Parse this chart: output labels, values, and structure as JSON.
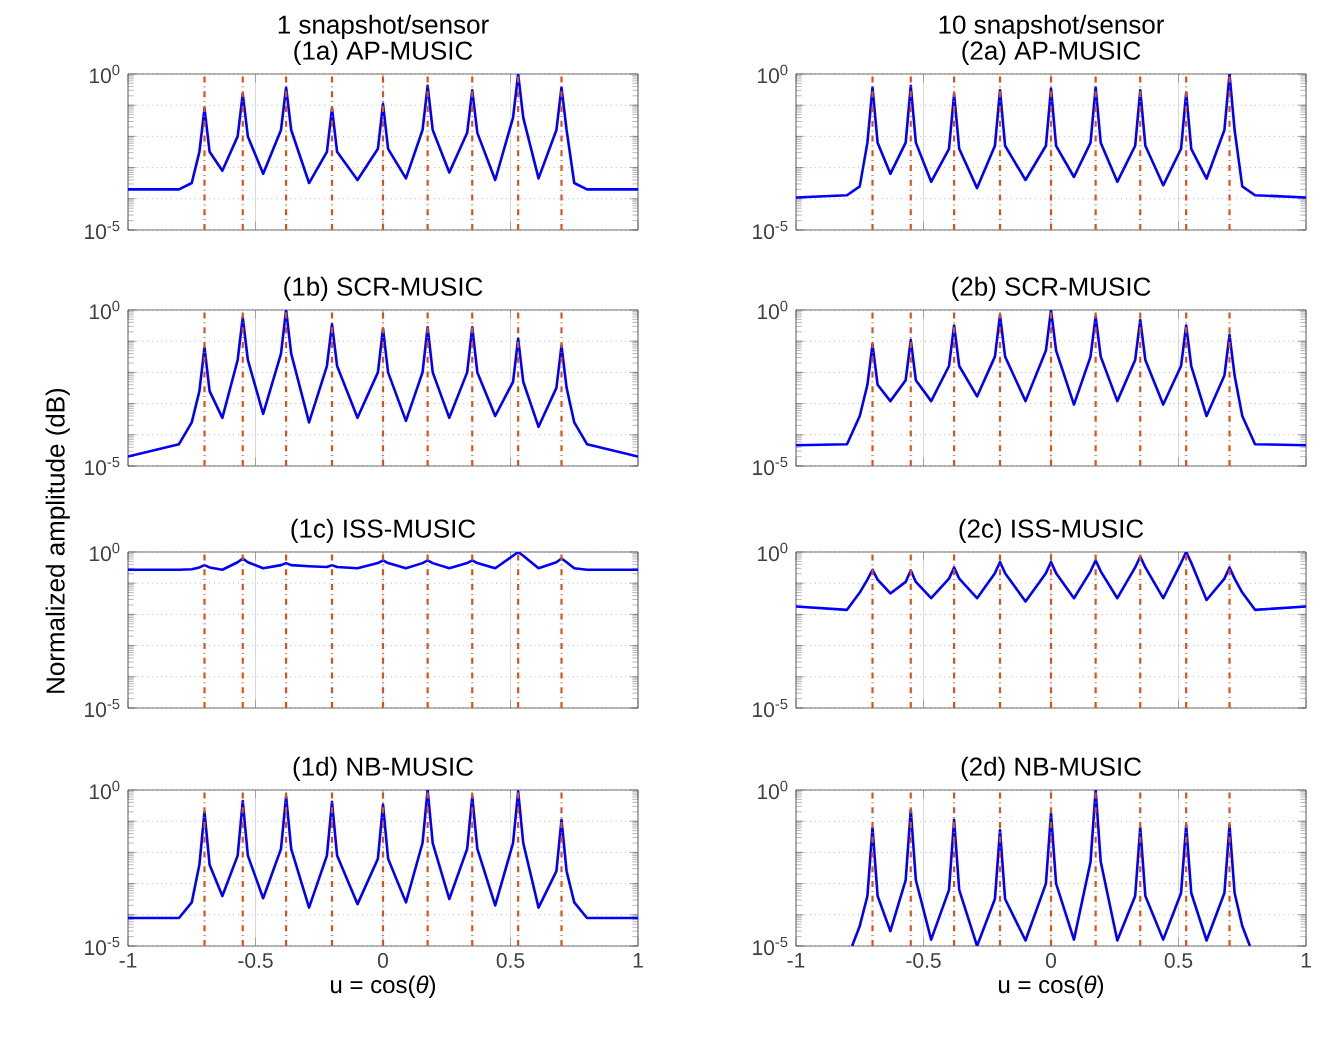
{
  "chart_data": [
    {
      "type": "line",
      "title": "1 snapshot/sensor",
      "subtitle": "(1a) AP-MUSIC",
      "log": "y",
      "grid": true,
      "tick_labels": "y",
      "color": "#0000ff",
      "xlim": [
        -1,
        1
      ],
      "ylim": [
        1e-05,
        1
      ],
      "xticks": [
        -1,
        -0.5,
        0,
        0.5,
        1
      ],
      "yticks": [
        {
          "value": 1e-05,
          "label": "10$^{-5}$"
        },
        {
          "value": 0.0001,
          "label": null
        },
        {
          "value": 0.001,
          "label": null
        },
        {
          "value": 0.01,
          "label": null
        },
        {
          "value": 0.1,
          "label": null
        },
        {
          "value": 1,
          "label": "10$^{0}$"
        }
      ],
      "ref_lines": [
        {
          "axis": "x",
          "value": -0.7,
          "color": "#d95319",
          "line_style": "dashdot"
        },
        {
          "axis": "x",
          "value": -0.55,
          "color": "#d95319",
          "line_style": "dashdot"
        },
        {
          "axis": "x",
          "value": -0.38,
          "color": "#d95319",
          "line_style": "dashdot"
        },
        {
          "axis": "x",
          "value": -0.2,
          "color": "#d95319",
          "line_style": "dashdot"
        },
        {
          "axis": "x",
          "value": 0,
          "color": "#d95319",
          "line_style": "dashdot"
        },
        {
          "axis": "x",
          "value": 0.175,
          "color": "#d95319",
          "line_style": "dashdot"
        },
        {
          "axis": "x",
          "value": 0.35,
          "color": "#d95319",
          "line_style": "dashdot"
        },
        {
          "axis": "x",
          "value": 0.53,
          "color": "#d95319",
          "line_style": "dashdot"
        },
        {
          "axis": "x",
          "value": 0.7,
          "color": "#d95319",
          "line_style": "dashdot"
        }
      ],
      "x": [
        -1,
        -0.8,
        -0.75,
        -0.72,
        -0.7,
        -0.68,
        -0.63,
        -0.57,
        -0.55,
        -0.53,
        -0.47,
        -0.4,
        -0.38,
        -0.36,
        -0.29,
        -0.22,
        -0.2,
        -0.18,
        -0.1,
        -0.02,
        0,
        0.02,
        0.09,
        0.155,
        0.175,
        0.195,
        0.26,
        0.33,
        0.35,
        0.37,
        0.44,
        0.51,
        0.53,
        0.55,
        0.61,
        0.68,
        0.7,
        0.72,
        0.75,
        0.8,
        1
      ],
      "values": [
        0.0002,
        0.0002,
        0.00032,
        0.0032,
        0.079,
        0.0032,
        0.00079,
        0.01,
        0.23,
        0.01,
        0.00063,
        0.016,
        0.37,
        0.016,
        0.00032,
        0.0032,
        0.079,
        0.0032,
        0.0004,
        0.004,
        0.11,
        0.004,
        0.00045,
        0.016,
        0.42,
        0.016,
        0.0007,
        0.013,
        0.3,
        0.013,
        0.0004,
        0.04,
        1,
        0.04,
        0.00045,
        0.016,
        0.37,
        0.016,
        0.00032,
        0.0002,
        0.0002
      ]
    },
    {
      "type": "line",
      "title": "10 snapshot/sensor",
      "subtitle": "(2a) AP-MUSIC",
      "log": "y",
      "grid": true,
      "tick_labels": "y",
      "color": "#0000ff",
      "xlim": [
        -1,
        1
      ],
      "ylim": [
        1e-05,
        1
      ],
      "xticks": [
        -1,
        -0.5,
        0,
        0.5,
        1
      ],
      "yticks": [
        {
          "value": 1e-05,
          "label": "10$^{-5}$"
        },
        {
          "value": 0.0001,
          "label": null
        },
        {
          "value": 0.001,
          "label": null
        },
        {
          "value": 0.01,
          "label": null
        },
        {
          "value": 0.1,
          "label": null
        },
        {
          "value": 1,
          "label": "10$^{0}$"
        }
      ],
      "ref_lines": [
        {
          "axis": "x",
          "value": -0.7,
          "color": "#d95319",
          "line_style": "dashdot"
        },
        {
          "axis": "x",
          "value": -0.55,
          "color": "#d95319",
          "line_style": "dashdot"
        },
        {
          "axis": "x",
          "value": -0.38,
          "color": "#d95319",
          "line_style": "dashdot"
        },
        {
          "axis": "x",
          "value": -0.2,
          "color": "#d95319",
          "line_style": "dashdot"
        },
        {
          "axis": "x",
          "value": 0,
          "color": "#d95319",
          "line_style": "dashdot"
        },
        {
          "axis": "x",
          "value": 0.175,
          "color": "#d95319",
          "line_style": "dashdot"
        },
        {
          "axis": "x",
          "value": 0.35,
          "color": "#d95319",
          "line_style": "dashdot"
        },
        {
          "axis": "x",
          "value": 0.53,
          "color": "#d95319",
          "line_style": "dashdot"
        },
        {
          "axis": "x",
          "value": 0.7,
          "color": "#d95319",
          "line_style": "dashdot"
        }
      ],
      "x": [
        -1,
        -0.8,
        -0.75,
        -0.72,
        -0.7,
        -0.68,
        -0.63,
        -0.57,
        -0.55,
        -0.53,
        -0.47,
        -0.4,
        -0.38,
        -0.36,
        -0.29,
        -0.22,
        -0.2,
        -0.18,
        -0.1,
        -0.02,
        0,
        0.02,
        0.09,
        0.155,
        0.175,
        0.195,
        0.26,
        0.33,
        0.35,
        0.37,
        0.44,
        0.51,
        0.53,
        0.55,
        0.61,
        0.68,
        0.7,
        0.72,
        0.75,
        0.8,
        1
      ],
      "values": [
        0.00011,
        0.00013,
        0.00025,
        0.0063,
        0.37,
        0.0063,
        0.00063,
        0.0063,
        0.42,
        0.0063,
        0.00035,
        0.004,
        0.23,
        0.004,
        0.00022,
        0.005,
        0.3,
        0.005,
        0.0004,
        0.005,
        0.34,
        0.005,
        0.0005,
        0.0063,
        0.37,
        0.0063,
        0.00035,
        0.005,
        0.3,
        0.005,
        0.00027,
        0.004,
        0.25,
        0.004,
        0.00044,
        0.016,
        1,
        0.016,
        0.00025,
        0.00013,
        0.00011
      ]
    },
    {
      "type": "line",
      "title": "(1b) SCR-MUSIC",
      "log": "y",
      "grid": true,
      "tick_labels": "y",
      "color": "#0000ff",
      "xlim": [
        -1,
        1
      ],
      "ylim": [
        1e-05,
        1
      ],
      "xticks": [
        -1,
        -0.5,
        0,
        0.5,
        1
      ],
      "yticks": [
        {
          "value": 1e-05,
          "label": "10$^{-5}$"
        },
        {
          "value": 0.0001,
          "label": null
        },
        {
          "value": 0.001,
          "label": null
        },
        {
          "value": 0.01,
          "label": null
        },
        {
          "value": 0.1,
          "label": null
        },
        {
          "value": 1,
          "label": "10$^{0}$"
        }
      ],
      "ref_lines": [
        {
          "axis": "x",
          "value": -0.7,
          "color": "#d95319",
          "line_style": "dashdot"
        },
        {
          "axis": "x",
          "value": -0.55,
          "color": "#d95319",
          "line_style": "dashdot"
        },
        {
          "axis": "x",
          "value": -0.38,
          "color": "#d95319",
          "line_style": "dashdot"
        },
        {
          "axis": "x",
          "value": -0.2,
          "color": "#d95319",
          "line_style": "dashdot"
        },
        {
          "axis": "x",
          "value": 0,
          "color": "#d95319",
          "line_style": "dashdot"
        },
        {
          "axis": "x",
          "value": 0.175,
          "color": "#d95319",
          "line_style": "dashdot"
        },
        {
          "axis": "x",
          "value": 0.35,
          "color": "#d95319",
          "line_style": "dashdot"
        },
        {
          "axis": "x",
          "value": 0.53,
          "color": "#d95319",
          "line_style": "dashdot"
        },
        {
          "axis": "x",
          "value": 0.7,
          "color": "#d95319",
          "line_style": "dashdot"
        }
      ],
      "x": [
        -1,
        -0.8,
        -0.75,
        -0.72,
        -0.7,
        -0.68,
        -0.63,
        -0.57,
        -0.55,
        -0.53,
        -0.47,
        -0.4,
        -0.38,
        -0.36,
        -0.29,
        -0.22,
        -0.2,
        -0.18,
        -0.1,
        -0.02,
        0,
        0.02,
        0.09,
        0.155,
        0.175,
        0.195,
        0.26,
        0.33,
        0.35,
        0.37,
        0.44,
        0.51,
        0.53,
        0.55,
        0.61,
        0.68,
        0.7,
        0.72,
        0.75,
        0.8,
        1
      ],
      "values": [
        2e-05,
        5e-05,
        0.00025,
        0.0025,
        0.063,
        0.0025,
        0.00035,
        0.025,
        0.58,
        0.025,
        0.00047,
        0.04,
        1,
        0.04,
        0.00025,
        0.016,
        0.35,
        0.016,
        0.00035,
        0.01,
        0.25,
        0.01,
        0.00028,
        0.01,
        0.28,
        0.01,
        0.00035,
        0.01,
        0.28,
        0.01,
        0.0004,
        0.005,
        0.12,
        0.005,
        0.00018,
        0.0032,
        0.072,
        0.0032,
        0.00025,
        5e-05,
        2e-05
      ]
    },
    {
      "type": "line",
      "title": "(2b) SCR-MUSIC",
      "log": "y",
      "grid": true,
      "tick_labels": "y",
      "color": "#0000ff",
      "xlim": [
        -1,
        1
      ],
      "ylim": [
        1e-05,
        1
      ],
      "xticks": [
        -1,
        -0.5,
        0,
        0.5,
        1
      ],
      "yticks": [
        {
          "value": 1e-05,
          "label": "10$^{-5}$"
        },
        {
          "value": 0.0001,
          "label": null
        },
        {
          "value": 0.001,
          "label": null
        },
        {
          "value": 0.01,
          "label": null
        },
        {
          "value": 0.1,
          "label": null
        },
        {
          "value": 1,
          "label": "10$^{0}$"
        }
      ],
      "ref_lines": [
        {
          "axis": "x",
          "value": -0.7,
          "color": "#d95319",
          "line_style": "dashdot"
        },
        {
          "axis": "x",
          "value": -0.55,
          "color": "#d95319",
          "line_style": "dashdot"
        },
        {
          "axis": "x",
          "value": -0.38,
          "color": "#d95319",
          "line_style": "dashdot"
        },
        {
          "axis": "x",
          "value": -0.2,
          "color": "#d95319",
          "line_style": "dashdot"
        },
        {
          "axis": "x",
          "value": 0,
          "color": "#d95319",
          "line_style": "dashdot"
        },
        {
          "axis": "x",
          "value": 0.175,
          "color": "#d95319",
          "line_style": "dashdot"
        },
        {
          "axis": "x",
          "value": 0.35,
          "color": "#d95319",
          "line_style": "dashdot"
        },
        {
          "axis": "x",
          "value": 0.53,
          "color": "#d95319",
          "line_style": "dashdot"
        },
        {
          "axis": "x",
          "value": 0.7,
          "color": "#d95319",
          "line_style": "dashdot"
        }
      ],
      "x": [
        -1,
        -0.8,
        -0.75,
        -0.72,
        -0.7,
        -0.68,
        -0.63,
        -0.57,
        -0.55,
        -0.53,
        -0.47,
        -0.4,
        -0.38,
        -0.36,
        -0.29,
        -0.22,
        -0.2,
        -0.18,
        -0.1,
        -0.02,
        0,
        0.02,
        0.09,
        0.155,
        0.175,
        0.195,
        0.26,
        0.33,
        0.35,
        0.37,
        0.44,
        0.51,
        0.53,
        0.55,
        0.61,
        0.68,
        0.7,
        0.72,
        0.75,
        0.8,
        1
      ],
      "values": [
        4.6e-05,
        5e-05,
        0.0004,
        0.004,
        0.079,
        0.004,
        0.0012,
        0.0056,
        0.11,
        0.0056,
        0.0012,
        0.016,
        0.32,
        0.016,
        0.0017,
        0.032,
        0.68,
        0.032,
        0.0012,
        0.05,
        1,
        0.05,
        0.00093,
        0.032,
        0.62,
        0.032,
        0.0012,
        0.025,
        0.48,
        0.025,
        0.00093,
        0.016,
        0.32,
        0.016,
        0.0004,
        0.0079,
        0.16,
        0.0079,
        0.0004,
        5e-05,
        4.6e-05
      ]
    },
    {
      "type": "line",
      "title": "(1c) ISS-MUSIC",
      "ylabel": "Normalized amplitude (dB)",
      "log": "y",
      "grid": true,
      "tick_labels": "y",
      "color": "#0000ff",
      "xlim": [
        -1,
        1
      ],
      "ylim": [
        1e-05,
        1
      ],
      "xticks": [
        -1,
        -0.5,
        0,
        0.5,
        1
      ],
      "yticks": [
        {
          "value": 1e-05,
          "label": "10$^{-5}$"
        },
        {
          "value": 0.0001,
          "label": null
        },
        {
          "value": 0.001,
          "label": null
        },
        {
          "value": 0.01,
          "label": null
        },
        {
          "value": 0.1,
          "label": null
        },
        {
          "value": 1,
          "label": "10$^{0}$"
        }
      ],
      "ref_lines": [
        {
          "axis": "x",
          "value": -0.7,
          "color": "#d95319",
          "line_style": "dashdot"
        },
        {
          "axis": "x",
          "value": -0.55,
          "color": "#d95319",
          "line_style": "dashdot"
        },
        {
          "axis": "x",
          "value": -0.38,
          "color": "#d95319",
          "line_style": "dashdot"
        },
        {
          "axis": "x",
          "value": -0.2,
          "color": "#d95319",
          "line_style": "dashdot"
        },
        {
          "axis": "x",
          "value": 0,
          "color": "#d95319",
          "line_style": "dashdot"
        },
        {
          "axis": "x",
          "value": 0.175,
          "color": "#d95319",
          "line_style": "dashdot"
        },
        {
          "axis": "x",
          "value": 0.35,
          "color": "#d95319",
          "line_style": "dashdot"
        },
        {
          "axis": "x",
          "value": 0.53,
          "color": "#d95319",
          "line_style": "dashdot"
        },
        {
          "axis": "x",
          "value": 0.7,
          "color": "#d95319",
          "line_style": "dashdot"
        }
      ],
      "x": [
        -1,
        -0.8,
        -0.75,
        -0.72,
        -0.7,
        -0.68,
        -0.63,
        -0.57,
        -0.55,
        -0.53,
        -0.47,
        -0.4,
        -0.38,
        -0.36,
        -0.29,
        -0.22,
        -0.2,
        -0.18,
        -0.1,
        -0.02,
        0,
        0.02,
        0.09,
        0.155,
        0.175,
        0.195,
        0.26,
        0.33,
        0.35,
        0.37,
        0.44,
        0.51,
        0.53,
        0.55,
        0.61,
        0.68,
        0.7,
        0.72,
        0.75,
        0.8,
        1
      ],
      "values": [
        0.27,
        0.27,
        0.28,
        0.32,
        0.38,
        0.32,
        0.27,
        0.47,
        0.62,
        0.47,
        0.3,
        0.38,
        0.44,
        0.38,
        0.35,
        0.33,
        0.38,
        0.33,
        0.3,
        0.44,
        0.54,
        0.44,
        0.3,
        0.44,
        0.54,
        0.44,
        0.3,
        0.44,
        0.54,
        0.44,
        0.3,
        0.76,
        1,
        0.76,
        0.3,
        0.47,
        0.62,
        0.47,
        0.3,
        0.27,
        0.27
      ]
    },
    {
      "type": "line",
      "title": "(2c) ISS-MUSIC",
      "log": "y",
      "grid": true,
      "tick_labels": "y",
      "color": "#0000ff",
      "xlim": [
        -1,
        1
      ],
      "ylim": [
        1e-05,
        1
      ],
      "xticks": [
        -1,
        -0.5,
        0,
        0.5,
        1
      ],
      "yticks": [
        {
          "value": 1e-05,
          "label": "10$^{-5}$"
        },
        {
          "value": 0.0001,
          "label": null
        },
        {
          "value": 0.001,
          "label": null
        },
        {
          "value": 0.01,
          "label": null
        },
        {
          "value": 0.1,
          "label": null
        },
        {
          "value": 1,
          "label": "10$^{0}$"
        }
      ],
      "ref_lines": [
        {
          "axis": "x",
          "value": -0.7,
          "color": "#d95319",
          "line_style": "dashdot"
        },
        {
          "axis": "x",
          "value": -0.55,
          "color": "#d95319",
          "line_style": "dashdot"
        },
        {
          "axis": "x",
          "value": -0.38,
          "color": "#d95319",
          "line_style": "dashdot"
        },
        {
          "axis": "x",
          "value": -0.2,
          "color": "#d95319",
          "line_style": "dashdot"
        },
        {
          "axis": "x",
          "value": 0,
          "color": "#d95319",
          "line_style": "dashdot"
        },
        {
          "axis": "x",
          "value": 0.175,
          "color": "#d95319",
          "line_style": "dashdot"
        },
        {
          "axis": "x",
          "value": 0.35,
          "color": "#d95319",
          "line_style": "dashdot"
        },
        {
          "axis": "x",
          "value": 0.53,
          "color": "#d95319",
          "line_style": "dashdot"
        },
        {
          "axis": "x",
          "value": 0.7,
          "color": "#d95319",
          "line_style": "dashdot"
        }
      ],
      "x": [
        -1,
        -0.8,
        -0.75,
        -0.72,
        -0.7,
        -0.68,
        -0.63,
        -0.57,
        -0.55,
        -0.53,
        -0.47,
        -0.4,
        -0.38,
        -0.36,
        -0.29,
        -0.22,
        -0.2,
        -0.18,
        -0.1,
        -0.02,
        0,
        0.02,
        0.09,
        0.155,
        0.175,
        0.195,
        0.26,
        0.33,
        0.35,
        0.37,
        0.44,
        0.51,
        0.53,
        0.55,
        0.61,
        0.68,
        0.7,
        0.72,
        0.75,
        0.8,
        1
      ],
      "values": [
        0.018,
        0.014,
        0.05,
        0.13,
        0.27,
        0.13,
        0.047,
        0.11,
        0.26,
        0.11,
        0.033,
        0.14,
        0.32,
        0.14,
        0.033,
        0.21,
        0.48,
        0.21,
        0.026,
        0.21,
        0.48,
        0.21,
        0.033,
        0.24,
        0.54,
        0.24,
        0.033,
        0.32,
        0.71,
        0.32,
        0.033,
        0.45,
        1,
        0.45,
        0.029,
        0.14,
        0.32,
        0.14,
        0.05,
        0.014,
        0.018
      ]
    },
    {
      "type": "line",
      "title": "(1d) NB-MUSIC",
      "xlabel": "u = cos(*θ*)",
      "log": "y",
      "grid": true,
      "color": "#0000ff",
      "xlim": [
        -1,
        1
      ],
      "ylim": [
        1e-05,
        1
      ],
      "xticks": [
        -1,
        -0.5,
        0,
        0.5,
        1
      ],
      "yticks": [
        {
          "value": 1e-05,
          "label": "10$^{-5}$"
        },
        {
          "value": 0.0001,
          "label": null
        },
        {
          "value": 0.001,
          "label": null
        },
        {
          "value": 0.01,
          "label": null
        },
        {
          "value": 0.1,
          "label": null
        },
        {
          "value": 1,
          "label": "10$^{0}$"
        }
      ],
      "ref_lines": [
        {
          "axis": "x",
          "value": -0.7,
          "color": "#d95319",
          "line_style": "dashdot"
        },
        {
          "axis": "x",
          "value": -0.55,
          "color": "#d95319",
          "line_style": "dashdot"
        },
        {
          "axis": "x",
          "value": -0.38,
          "color": "#d95319",
          "line_style": "dashdot"
        },
        {
          "axis": "x",
          "value": -0.2,
          "color": "#d95319",
          "line_style": "dashdot"
        },
        {
          "axis": "x",
          "value": 0,
          "color": "#d95319",
          "line_style": "dashdot"
        },
        {
          "axis": "x",
          "value": 0.175,
          "color": "#d95319",
          "line_style": "dashdot"
        },
        {
          "axis": "x",
          "value": 0.35,
          "color": "#d95319",
          "line_style": "dashdot"
        },
        {
          "axis": "x",
          "value": 0.53,
          "color": "#d95319",
          "line_style": "dashdot"
        },
        {
          "axis": "x",
          "value": 0.7,
          "color": "#d95319",
          "line_style": "dashdot"
        }
      ],
      "x": [
        -1,
        -0.8,
        -0.75,
        -0.72,
        -0.7,
        -0.68,
        -0.63,
        -0.57,
        -0.55,
        -0.53,
        -0.47,
        -0.4,
        -0.38,
        -0.36,
        -0.29,
        -0.22,
        -0.2,
        -0.18,
        -0.1,
        -0.02,
        0,
        0.02,
        0.09,
        0.155,
        0.175,
        0.195,
        0.26,
        0.33,
        0.35,
        0.37,
        0.44,
        0.51,
        0.53,
        0.55,
        0.61,
        0.68,
        0.7,
        0.72,
        0.75,
        0.8,
        1
      ],
      "values": [
        7.9e-05,
        7.9e-05,
        0.00025,
        0.004,
        0.2,
        0.004,
        0.0004,
        0.0079,
        0.44,
        0.0079,
        0.00034,
        0.013,
        0.62,
        0.013,
        0.00017,
        0.0079,
        0.42,
        0.0079,
        0.00022,
        0.0063,
        0.34,
        0.0063,
        0.00025,
        0.02,
        1,
        0.02,
        0.00032,
        0.013,
        0.62,
        0.013,
        0.0002,
        0.02,
        0.91,
        0.02,
        0.00017,
        0.0025,
        0.11,
        0.0025,
        0.00025,
        7.9e-05,
        7.9e-05
      ]
    },
    {
      "type": "line",
      "title": "(2d) NB-MUSIC",
      "xlabel": "u = cos(*θ*)",
      "log": "y",
      "grid": true,
      "color": "#0000ff",
      "xlim": [
        -1,
        1
      ],
      "ylim": [
        1e-05,
        1
      ],
      "xticks": [
        -1,
        -0.5,
        0,
        0.5,
        1
      ],
      "yticks": [
        {
          "value": 1e-05,
          "label": "10$^{-5}$"
        },
        {
          "value": 0.0001,
          "label": null
        },
        {
          "value": 0.001,
          "label": null
        },
        {
          "value": 0.01,
          "label": null
        },
        {
          "value": 0.1,
          "label": null
        },
        {
          "value": 1,
          "label": "10$^{0}$"
        }
      ],
      "ref_lines": [
        {
          "axis": "x",
          "value": -0.7,
          "color": "#d95319",
          "line_style": "dashdot"
        },
        {
          "axis": "x",
          "value": -0.55,
          "color": "#d95319",
          "line_style": "dashdot"
        },
        {
          "axis": "x",
          "value": -0.38,
          "color": "#d95319",
          "line_style": "dashdot"
        },
        {
          "axis": "x",
          "value": -0.2,
          "color": "#d95319",
          "line_style": "dashdot"
        },
        {
          "axis": "x",
          "value": 0,
          "color": "#d95319",
          "line_style": "dashdot"
        },
        {
          "axis": "x",
          "value": 0.175,
          "color": "#d95319",
          "line_style": "dashdot"
        },
        {
          "axis": "x",
          "value": 0.35,
          "color": "#d95319",
          "line_style": "dashdot"
        },
        {
          "axis": "x",
          "value": 0.53,
          "color": "#d95319",
          "line_style": "dashdot"
        },
        {
          "axis": "x",
          "value": 0.7,
          "color": "#d95319",
          "line_style": "dashdot"
        }
      ],
      "x": [
        -0.78,
        -0.75,
        -0.72,
        -0.7,
        -0.68,
        -0.63,
        -0.57,
        -0.55,
        -0.53,
        -0.47,
        -0.4,
        -0.38,
        -0.36,
        -0.29,
        -0.22,
        -0.2,
        -0.18,
        -0.1,
        -0.02,
        0,
        0.02,
        0.09,
        0.155,
        0.175,
        0.195,
        0.26,
        0.33,
        0.35,
        0.37,
        0.44,
        0.51,
        0.53,
        0.55,
        0.61,
        0.68,
        0.7,
        0.72,
        0.75,
        0.78
      ],
      "values": [
        1e-05,
        4.4e-05,
        0.0004,
        0.062,
        0.0004,
        3e-05,
        0.0013,
        0.23,
        0.0013,
        1.6e-05,
        0.00063,
        0.11,
        0.00063,
        1e-05,
        0.00032,
        0.052,
        0.00032,
        1.5e-05,
        0.001,
        0.18,
        0.001,
        1.6e-05,
        0.005,
        1,
        0.005,
        1.5e-05,
        0.0004,
        0.062,
        0.0004,
        1.6e-05,
        0.0005,
        0.074,
        0.0005,
        1.5e-05,
        0.0005,
        0.074,
        0.0005,
        4.4e-05,
        1e-05
      ]
    }
  ]
}
